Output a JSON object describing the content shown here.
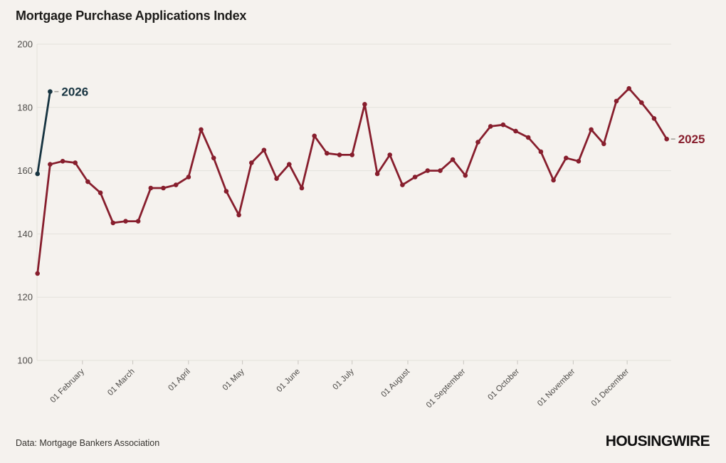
{
  "page": {
    "title": "Mortgage Purchase Applications Index",
    "source_note": "Data: Mortgage Bankers Association",
    "brand": "HOUSINGWIRE"
  },
  "colors": {
    "background": "#f5f2ee",
    "series_2025": "#871e2d",
    "series_2026": "#173441",
    "grid": "#e4e1db",
    "tick": "#c8c5bf",
    "axis_text": "#4e4c49",
    "label_dash": "#a5a29c"
  },
  "chart_data": {
    "type": "line",
    "title": "Mortgage Purchase Applications Index",
    "xlabel": "",
    "ylabel": "",
    "ylim": [
      100,
      200
    ],
    "yticks": [
      200,
      180,
      160,
      140,
      120,
      100
    ],
    "grid": true,
    "legend_position": "series-end-labels",
    "x_interval": "weekly",
    "month_ticks": [
      {
        "label": "01 February",
        "day": 25
      },
      {
        "label": "01 March",
        "day": 53
      },
      {
        "label": "01 April",
        "day": 84
      },
      {
        "label": "01 May",
        "day": 114
      },
      {
        "label": "01 June",
        "day": 145
      },
      {
        "label": "01 July",
        "day": 175
      },
      {
        "label": "01 August",
        "day": 206
      },
      {
        "label": "01 September",
        "day": 237
      },
      {
        "label": "01 October",
        "day": 267
      },
      {
        "label": "01 November",
        "day": 298
      },
      {
        "label": "01 December",
        "day": 328
      }
    ],
    "series": [
      {
        "name": "2025",
        "color_key": "series_2025",
        "start_day": 0,
        "interval_days": 7,
        "values": [
          127.5,
          162,
          163,
          162.5,
          156.5,
          153,
          143.5,
          144,
          144,
          154.5,
          154.5,
          155.5,
          158,
          173,
          164,
          153.5,
          146,
          162.5,
          166.5,
          157.5,
          162,
          154.5,
          171,
          165.5,
          165,
          165,
          181,
          159,
          165,
          155.5,
          158,
          160,
          160,
          163.5,
          158.5,
          169,
          174,
          174.5,
          172.5,
          170.5,
          166,
          157,
          164,
          163,
          173,
          168.5,
          182,
          186,
          181.5,
          176.5,
          170
        ]
      },
      {
        "name": "2026",
        "color_key": "series_2026",
        "start_day": 0,
        "interval_days": 7,
        "values": [
          159,
          185
        ]
      }
    ]
  }
}
